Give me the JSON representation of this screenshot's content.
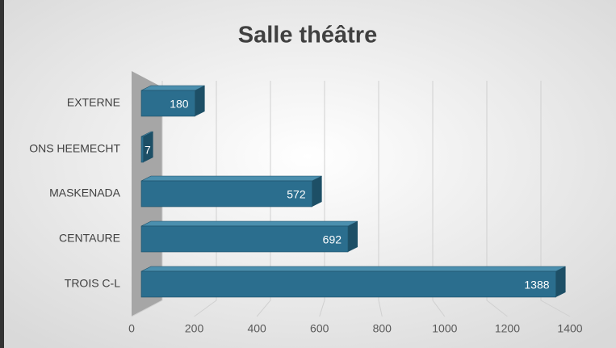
{
  "chart_data": {
    "type": "bar",
    "orientation": "horizontal",
    "title": "Salle théâtre",
    "categories": [
      "EXTERNE",
      "ONS HEEMECHT",
      "MASKENADA",
      "CENTAURE",
      "TROIS C-L"
    ],
    "values": [
      180,
      7,
      572,
      692,
      1388
    ],
    "color": "#2b6e8e",
    "xlim": [
      0,
      1400
    ],
    "xticks": [
      0,
      200,
      400,
      600,
      800,
      1000,
      1200,
      1400
    ],
    "grid": true
  }
}
